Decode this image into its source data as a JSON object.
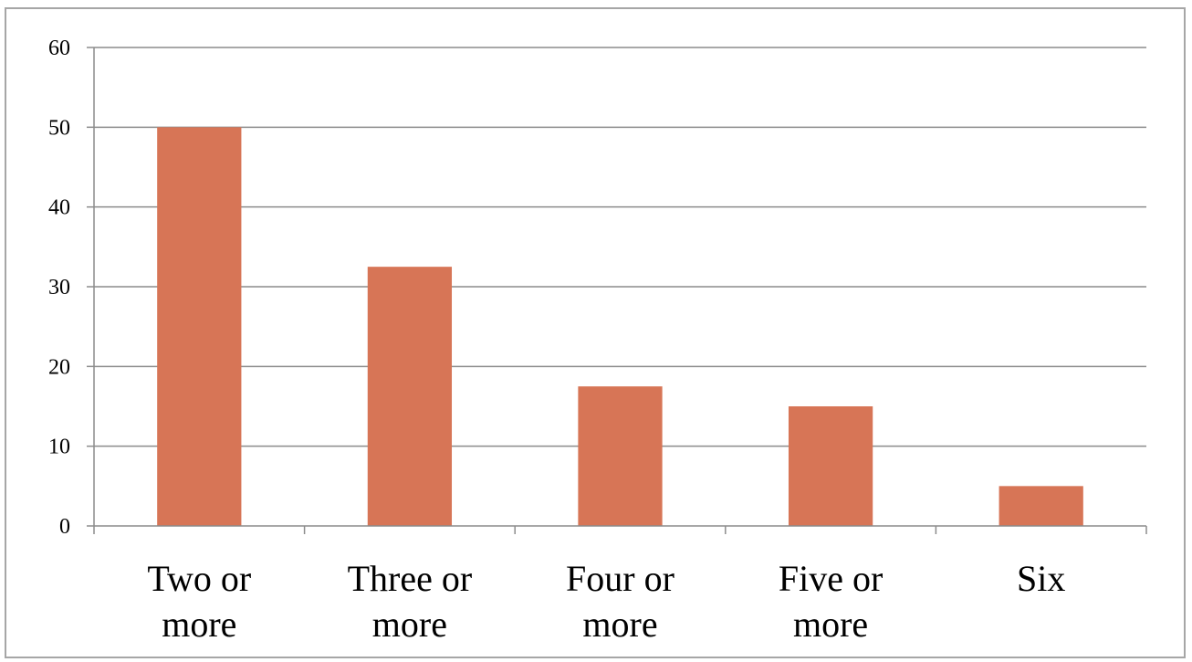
{
  "chart_data": {
    "type": "bar",
    "categories": [
      [
        "Two or",
        "more"
      ],
      [
        "Three or",
        "more"
      ],
      [
        "Four or",
        "more"
      ],
      [
        "Five or",
        "more"
      ],
      [
        "Six"
      ]
    ],
    "values": [
      50,
      32.5,
      17.5,
      15,
      5
    ],
    "ylim": [
      0,
      60
    ],
    "yticks": [
      "0",
      "10",
      "20",
      "30",
      "40",
      "50",
      "60"
    ],
    "grid": true,
    "legend": "none",
    "title": "",
    "xlabel": "",
    "ylabel": "",
    "colors": {
      "bar": "#d77556",
      "grid": "#8c8c8c",
      "axis": "#8c8c8c",
      "frame": "#a6a6a6"
    }
  }
}
